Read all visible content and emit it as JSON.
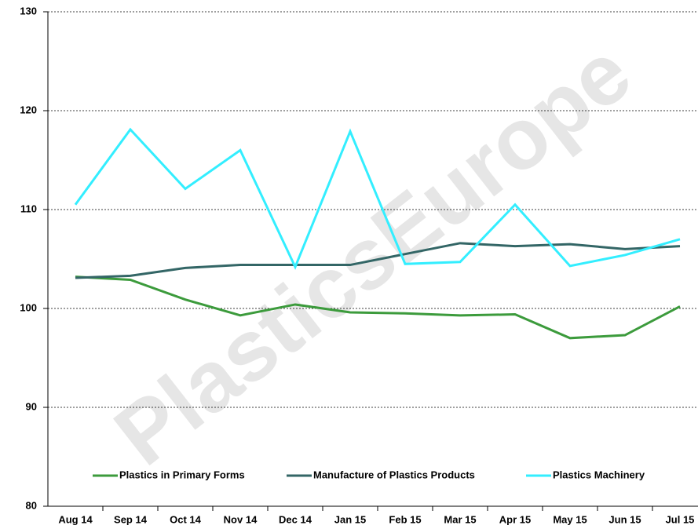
{
  "chart_data": {
    "type": "line",
    "watermark": "PlasticsEurope",
    "categories": [
      "Aug 14",
      "Sep 14",
      "Oct 14",
      "Nov 14",
      "Dec 14",
      "Jan 15",
      "Feb 15",
      "Mar 15",
      "Apr 15",
      "May 15",
      "Jun 15",
      "Jul 15"
    ],
    "series": [
      {
        "name": "Plastics in Primary Forms",
        "color": "#3c9b3c",
        "values": [
          103.2,
          102.9,
          100.9,
          99.3,
          100.4,
          99.6,
          99.5,
          99.3,
          99.4,
          97.0,
          97.3,
          100.2
        ]
      },
      {
        "name": "Manufacture of Plastics Products",
        "color": "#336666",
        "values": [
          103.1,
          103.3,
          104.1,
          104.4,
          104.4,
          104.4,
          105.5,
          106.6,
          106.3,
          106.5,
          106.0,
          106.3
        ]
      },
      {
        "name": "Plastics Machinery",
        "color": "#33eeff",
        "values": [
          110.5,
          118.1,
          112.1,
          116.0,
          104.2,
          117.9,
          104.5,
          104.7,
          110.5,
          104.3,
          105.4,
          107.0
        ]
      }
    ],
    "ylim": [
      80,
      130
    ],
    "yticks": [
      80,
      90,
      100,
      110,
      120,
      130
    ],
    "grid": true,
    "legend": "bottom"
  }
}
